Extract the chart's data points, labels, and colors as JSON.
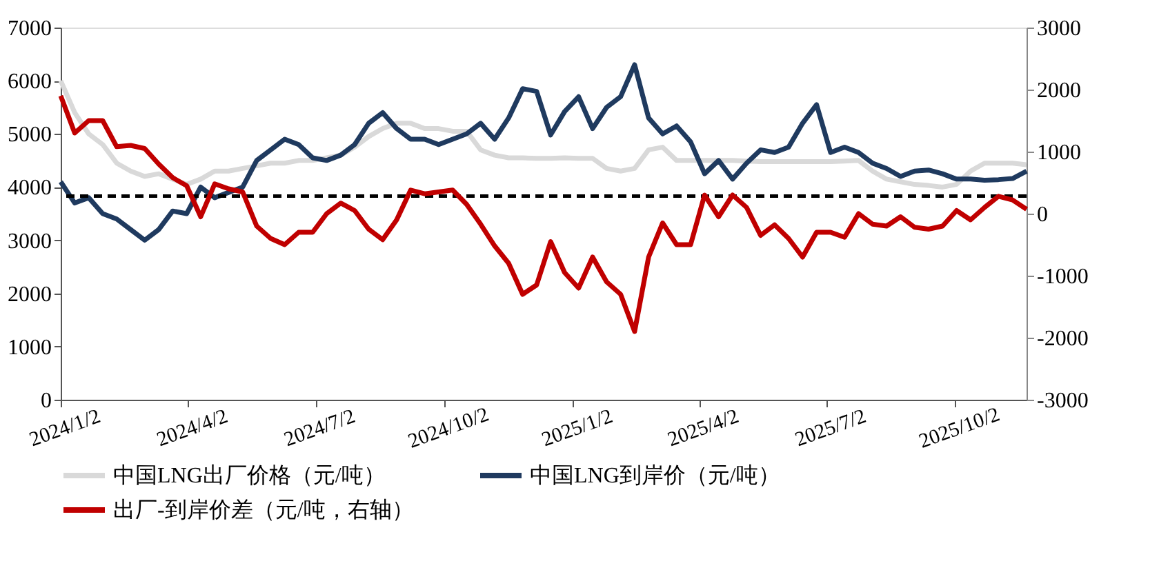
{
  "chart_data": {
    "type": "line",
    "x": [
      "2024-01-02",
      "2024-01-12",
      "2024-01-22",
      "2024-02-01",
      "2024-02-11",
      "2024-02-21",
      "2024-03-02",
      "2024-03-12",
      "2024-03-22",
      "2024-04-01",
      "2024-04-11",
      "2024-04-21",
      "2024-05-01",
      "2024-05-11",
      "2024-05-21",
      "2024-05-31",
      "2024-06-10",
      "2024-06-20",
      "2024-06-30",
      "2024-07-10",
      "2024-07-20",
      "2024-07-30",
      "2024-08-09",
      "2024-08-19",
      "2024-08-29",
      "2024-09-08",
      "2024-09-18",
      "2024-09-28",
      "2024-10-08",
      "2024-10-18",
      "2024-10-28",
      "2024-11-07",
      "2024-11-17",
      "2024-11-27",
      "2024-12-07",
      "2024-12-17",
      "2024-12-27",
      "2025-01-06",
      "2025-01-16",
      "2025-01-26",
      "2025-02-05",
      "2025-02-15",
      "2025-02-25",
      "2025-03-07",
      "2025-03-17",
      "2025-03-27",
      "2025-04-06",
      "2025-04-16",
      "2025-04-26",
      "2025-05-06",
      "2025-05-16",
      "2025-05-26",
      "2025-06-05",
      "2025-06-15",
      "2025-06-25",
      "2025-07-05",
      "2025-07-15",
      "2025-07-25",
      "2025-08-04",
      "2025-08-14",
      "2025-08-24",
      "2025-09-03",
      "2025-09-13",
      "2025-09-23",
      "2025-10-03",
      "2025-10-13",
      "2025-10-23",
      "2025-11-02",
      "2025-11-12",
      "2025-11-22"
    ],
    "series": [
      {
        "name": "中国LNG出厂价格（元/吨）",
        "color": "#d9d9d9",
        "values": [
          6000,
          5400,
          5000,
          4800,
          4450,
          4300,
          4200,
          4250,
          4150,
          4050,
          4150,
          4300,
          4300,
          4350,
          4400,
          4450,
          4450,
          4500,
          4500,
          4550,
          4600,
          4750,
          4950,
          5100,
          5200,
          5200,
          5100,
          5100,
          5050,
          5050,
          4700,
          4600,
          4550,
          4550,
          4540,
          4540,
          4550,
          4540,
          4540,
          4350,
          4300,
          4350,
          4700,
          4750,
          4500,
          4500,
          4500,
          4500,
          4500,
          4490,
          4480,
          4480,
          4480,
          4480,
          4480,
          4480,
          4490,
          4500,
          4300,
          4150,
          4100,
          4050,
          4030,
          4000,
          4050,
          4300,
          4450,
          4450,
          4450,
          4420
        ]
      },
      {
        "name": "中国LNG到岸价（元/吨）",
        "color": "#1f3a5f",
        "values": [
          4100,
          3700,
          3800,
          3500,
          3400,
          3200,
          3000,
          3200,
          3550,
          3500,
          4000,
          3800,
          3900,
          4000,
          4500,
          4700,
          4900,
          4800,
          4550,
          4500,
          4600,
          4800,
          5200,
          5400,
          5100,
          4900,
          4900,
          4800,
          4900,
          5000,
          5200,
          4900,
          5300,
          5850,
          5800,
          4980,
          5420,
          5700,
          5100,
          5500,
          5700,
          6300,
          5300,
          5000,
          5150,
          4850,
          4250,
          4500,
          4150,
          4450,
          4700,
          4650,
          4750,
          5200,
          5550,
          4650,
          4750,
          4650,
          4450,
          4350,
          4200,
          4300,
          4320,
          4250,
          4150,
          4150,
          4130,
          4140,
          4160,
          4300
        ]
      },
      {
        "name": "出厂-到岸价差（元/吨，右轴）",
        "color": "#c00000",
        "axis": "y2",
        "values": [
          1900,
          1300,
          1500,
          1500,
          1080,
          1100,
          1050,
          800,
          580,
          450,
          -50,
          480,
          400,
          350,
          -200,
          -400,
          -500,
          -300,
          -300,
          0,
          170,
          50,
          -250,
          -420,
          -100,
          380,
          320,
          350,
          380,
          150,
          -170,
          -520,
          -800,
          -1300,
          -1150,
          -450,
          -950,
          -1200,
          -700,
          -1100,
          -1300,
          -1900,
          -700,
          -150,
          -500,
          -500,
          300,
          -50,
          300,
          100,
          -350,
          -180,
          -400,
          -700,
          -300,
          -300,
          -380,
          0,
          -170,
          -200,
          -50,
          -220,
          -250,
          -200,
          50,
          -100,
          100,
          280,
          220,
          70
        ]
      }
    ],
    "xlim": [
      "2024-01-02",
      "2025-11-22"
    ],
    "xticks": [
      {
        "value": "2024-01-02",
        "label": "2024/1/2"
      },
      {
        "value": "2024-04-02",
        "label": "2024/4/2"
      },
      {
        "value": "2024-07-02",
        "label": "2024/7/2"
      },
      {
        "value": "2024-10-02",
        "label": "2024/10/2"
      },
      {
        "value": "2025-01-02",
        "label": "2025/1/2"
      },
      {
        "value": "2025-04-02",
        "label": "2025/4/2"
      },
      {
        "value": "2025-07-02",
        "label": "2025/7/2"
      },
      {
        "value": "2025-10-02",
        "label": "2025/10/2"
      }
    ],
    "ylim": [
      0,
      7000
    ],
    "yticks": [
      0,
      1000,
      2000,
      3000,
      4000,
      5000,
      6000,
      7000
    ],
    "y2lim": [
      -3000,
      3000
    ],
    "y2ticks": [
      -3000,
      -2000,
      -1000,
      0,
      1000,
      2000,
      3000
    ],
    "ref_lines": [
      {
        "axis": "y",
        "value": 3830,
        "color": "#000000",
        "line_style": "dashed"
      }
    ],
    "grid": false,
    "legend": "bottom",
    "line_style": "solid",
    "marker": "none"
  }
}
